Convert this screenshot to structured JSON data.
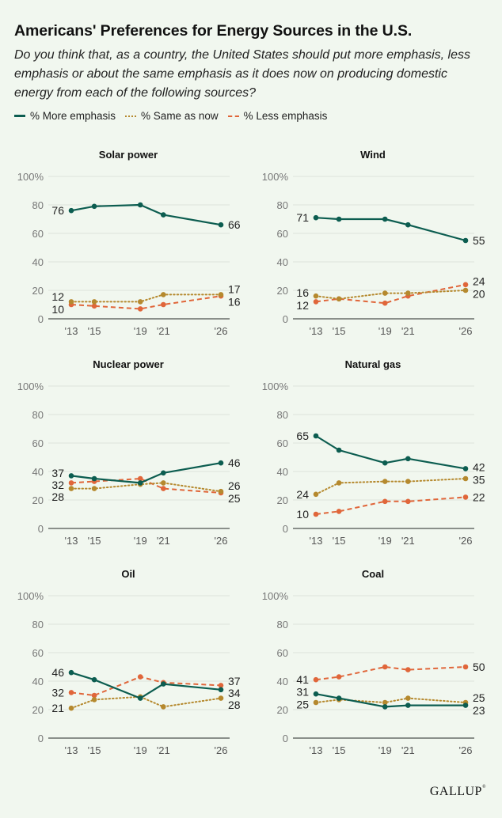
{
  "header": {
    "title": "Americans' Preferences for Energy Sources in the U.S.",
    "subtitle": "Do you think that, as a country, the United States should put more emphasis, less emphasis or about the same emphasis as it does now on producing domestic energy from each of the following sources?"
  },
  "legend": [
    {
      "label": "% More emphasis",
      "key": "more",
      "color": "#0c5d50",
      "style": "solid"
    },
    {
      "label": "% Same as now",
      "key": "same",
      "color": "#b5892e",
      "style": "dotted"
    },
    {
      "label": "% Less emphasis",
      "key": "less",
      "color": "#e0663a",
      "style": "dashed"
    }
  ],
  "footer": {
    "logo": "GALLUP",
    "logo_mark": "®"
  },
  "chart_data": [
    {
      "type": "line",
      "title": "Solar power",
      "x": [
        2013,
        2015,
        2019,
        2021,
        2026
      ],
      "x_tick_labels": [
        "'13",
        "'15",
        "'19",
        "'21",
        "'26"
      ],
      "y_tick_labels": [
        "0",
        "20",
        "40",
        "60",
        "80",
        "100%"
      ],
      "ylim": [
        0,
        100
      ],
      "grid": true,
      "series": [
        {
          "name": "% More emphasis",
          "key": "more",
          "values": [
            76,
            79,
            80,
            73,
            66
          ],
          "start_label": "76",
          "end_label": "66"
        },
        {
          "name": "% Same as now",
          "key": "same",
          "values": [
            12,
            12,
            12,
            17,
            17
          ],
          "start_label": "12",
          "end_label": "17"
        },
        {
          "name": "% Less emphasis",
          "key": "less",
          "values": [
            10,
            9,
            7,
            10,
            16
          ],
          "start_label": "10",
          "end_label": "16"
        }
      ]
    },
    {
      "type": "line",
      "title": "Wind",
      "x": [
        2013,
        2015,
        2019,
        2021,
        2026
      ],
      "x_tick_labels": [
        "'13",
        "'15",
        "'19",
        "'21",
        "'26"
      ],
      "y_tick_labels": [
        "0",
        "20",
        "40",
        "60",
        "80",
        "100%"
      ],
      "ylim": [
        0,
        100
      ],
      "grid": true,
      "series": [
        {
          "name": "% More emphasis",
          "key": "more",
          "values": [
            71,
            70,
            70,
            66,
            55
          ],
          "start_label": "71",
          "end_label": "55"
        },
        {
          "name": "% Same as now",
          "key": "same",
          "values": [
            16,
            14,
            18,
            18,
            20
          ],
          "start_label": "16",
          "end_label": "20"
        },
        {
          "name": "% Less emphasis",
          "key": "less",
          "values": [
            12,
            14,
            11,
            16,
            24
          ],
          "start_label": "12",
          "end_label": "24"
        }
      ]
    },
    {
      "type": "line",
      "title": "Nuclear power",
      "x": [
        2013,
        2015,
        2019,
        2021,
        2026
      ],
      "x_tick_labels": [
        "'13",
        "'15",
        "'19",
        "'21",
        "'26"
      ],
      "y_tick_labels": [
        "0",
        "20",
        "40",
        "60",
        "80",
        "100%"
      ],
      "ylim": [
        0,
        100
      ],
      "grid": true,
      "series": [
        {
          "name": "% More emphasis",
          "key": "more",
          "values": [
            37,
            35,
            32,
            39,
            46
          ],
          "start_label": "37",
          "end_label": "46"
        },
        {
          "name": "% Same as now",
          "key": "same",
          "values": [
            28,
            28,
            31,
            32,
            26
          ],
          "start_label": "28",
          "end_label": "26"
        },
        {
          "name": "% Less emphasis",
          "key": "less",
          "values": [
            32,
            33,
            35,
            28,
            25
          ],
          "start_label": "32",
          "end_label": "25"
        }
      ]
    },
    {
      "type": "line",
      "title": "Natural gas",
      "x": [
        2013,
        2015,
        2019,
        2021,
        2026
      ],
      "x_tick_labels": [
        "'13",
        "'15",
        "'19",
        "'21",
        "'26"
      ],
      "y_tick_labels": [
        "0",
        "20",
        "40",
        "60",
        "80",
        "100%"
      ],
      "ylim": [
        0,
        100
      ],
      "grid": true,
      "series": [
        {
          "name": "% More emphasis",
          "key": "more",
          "values": [
            65,
            55,
            46,
            49,
            42
          ],
          "start_label": "65",
          "end_label": "42"
        },
        {
          "name": "% Same as now",
          "key": "same",
          "values": [
            24,
            32,
            33,
            33,
            35
          ],
          "start_label": "24",
          "end_label": "35"
        },
        {
          "name": "% Less emphasis",
          "key": "less",
          "values": [
            10,
            12,
            19,
            19,
            22
          ],
          "start_label": "10",
          "end_label": "22"
        }
      ]
    },
    {
      "type": "line",
      "title": "Oil",
      "x": [
        2013,
        2015,
        2019,
        2021,
        2026
      ],
      "x_tick_labels": [
        "'13",
        "'15",
        "'19",
        "'21",
        "'26"
      ],
      "y_tick_labels": [
        "0",
        "20",
        "40",
        "60",
        "80",
        "100%"
      ],
      "ylim": [
        0,
        100
      ],
      "grid": true,
      "series": [
        {
          "name": "% More emphasis",
          "key": "more",
          "values": [
            46,
            41,
            28,
            38,
            34
          ],
          "start_label": "46",
          "end_label": "34"
        },
        {
          "name": "% Same as now",
          "key": "same",
          "values": [
            21,
            27,
            29,
            22,
            28
          ],
          "start_label": "21",
          "end_label": "28"
        },
        {
          "name": "% Less emphasis",
          "key": "less",
          "values": [
            32,
            30,
            43,
            39,
            37
          ],
          "start_label": "32",
          "end_label": "37"
        }
      ]
    },
    {
      "type": "line",
      "title": "Coal",
      "x": [
        2013,
        2015,
        2019,
        2021,
        2026
      ],
      "x_tick_labels": [
        "'13",
        "'15",
        "'19",
        "'21",
        "'26"
      ],
      "y_tick_labels": [
        "0",
        "20",
        "40",
        "60",
        "80",
        "100%"
      ],
      "ylim": [
        0,
        100
      ],
      "grid": true,
      "series": [
        {
          "name": "% More emphasis",
          "key": "more",
          "values": [
            31,
            28,
            22,
            23,
            23
          ],
          "start_label": "31",
          "end_label": "23"
        },
        {
          "name": "% Same as now",
          "key": "same",
          "values": [
            25,
            27,
            25,
            28,
            25
          ],
          "start_label": "25",
          "end_label": "25"
        },
        {
          "name": "% Less emphasis",
          "key": "less",
          "values": [
            41,
            43,
            50,
            48,
            50
          ],
          "start_label": "41",
          "end_label": "50"
        }
      ]
    }
  ]
}
